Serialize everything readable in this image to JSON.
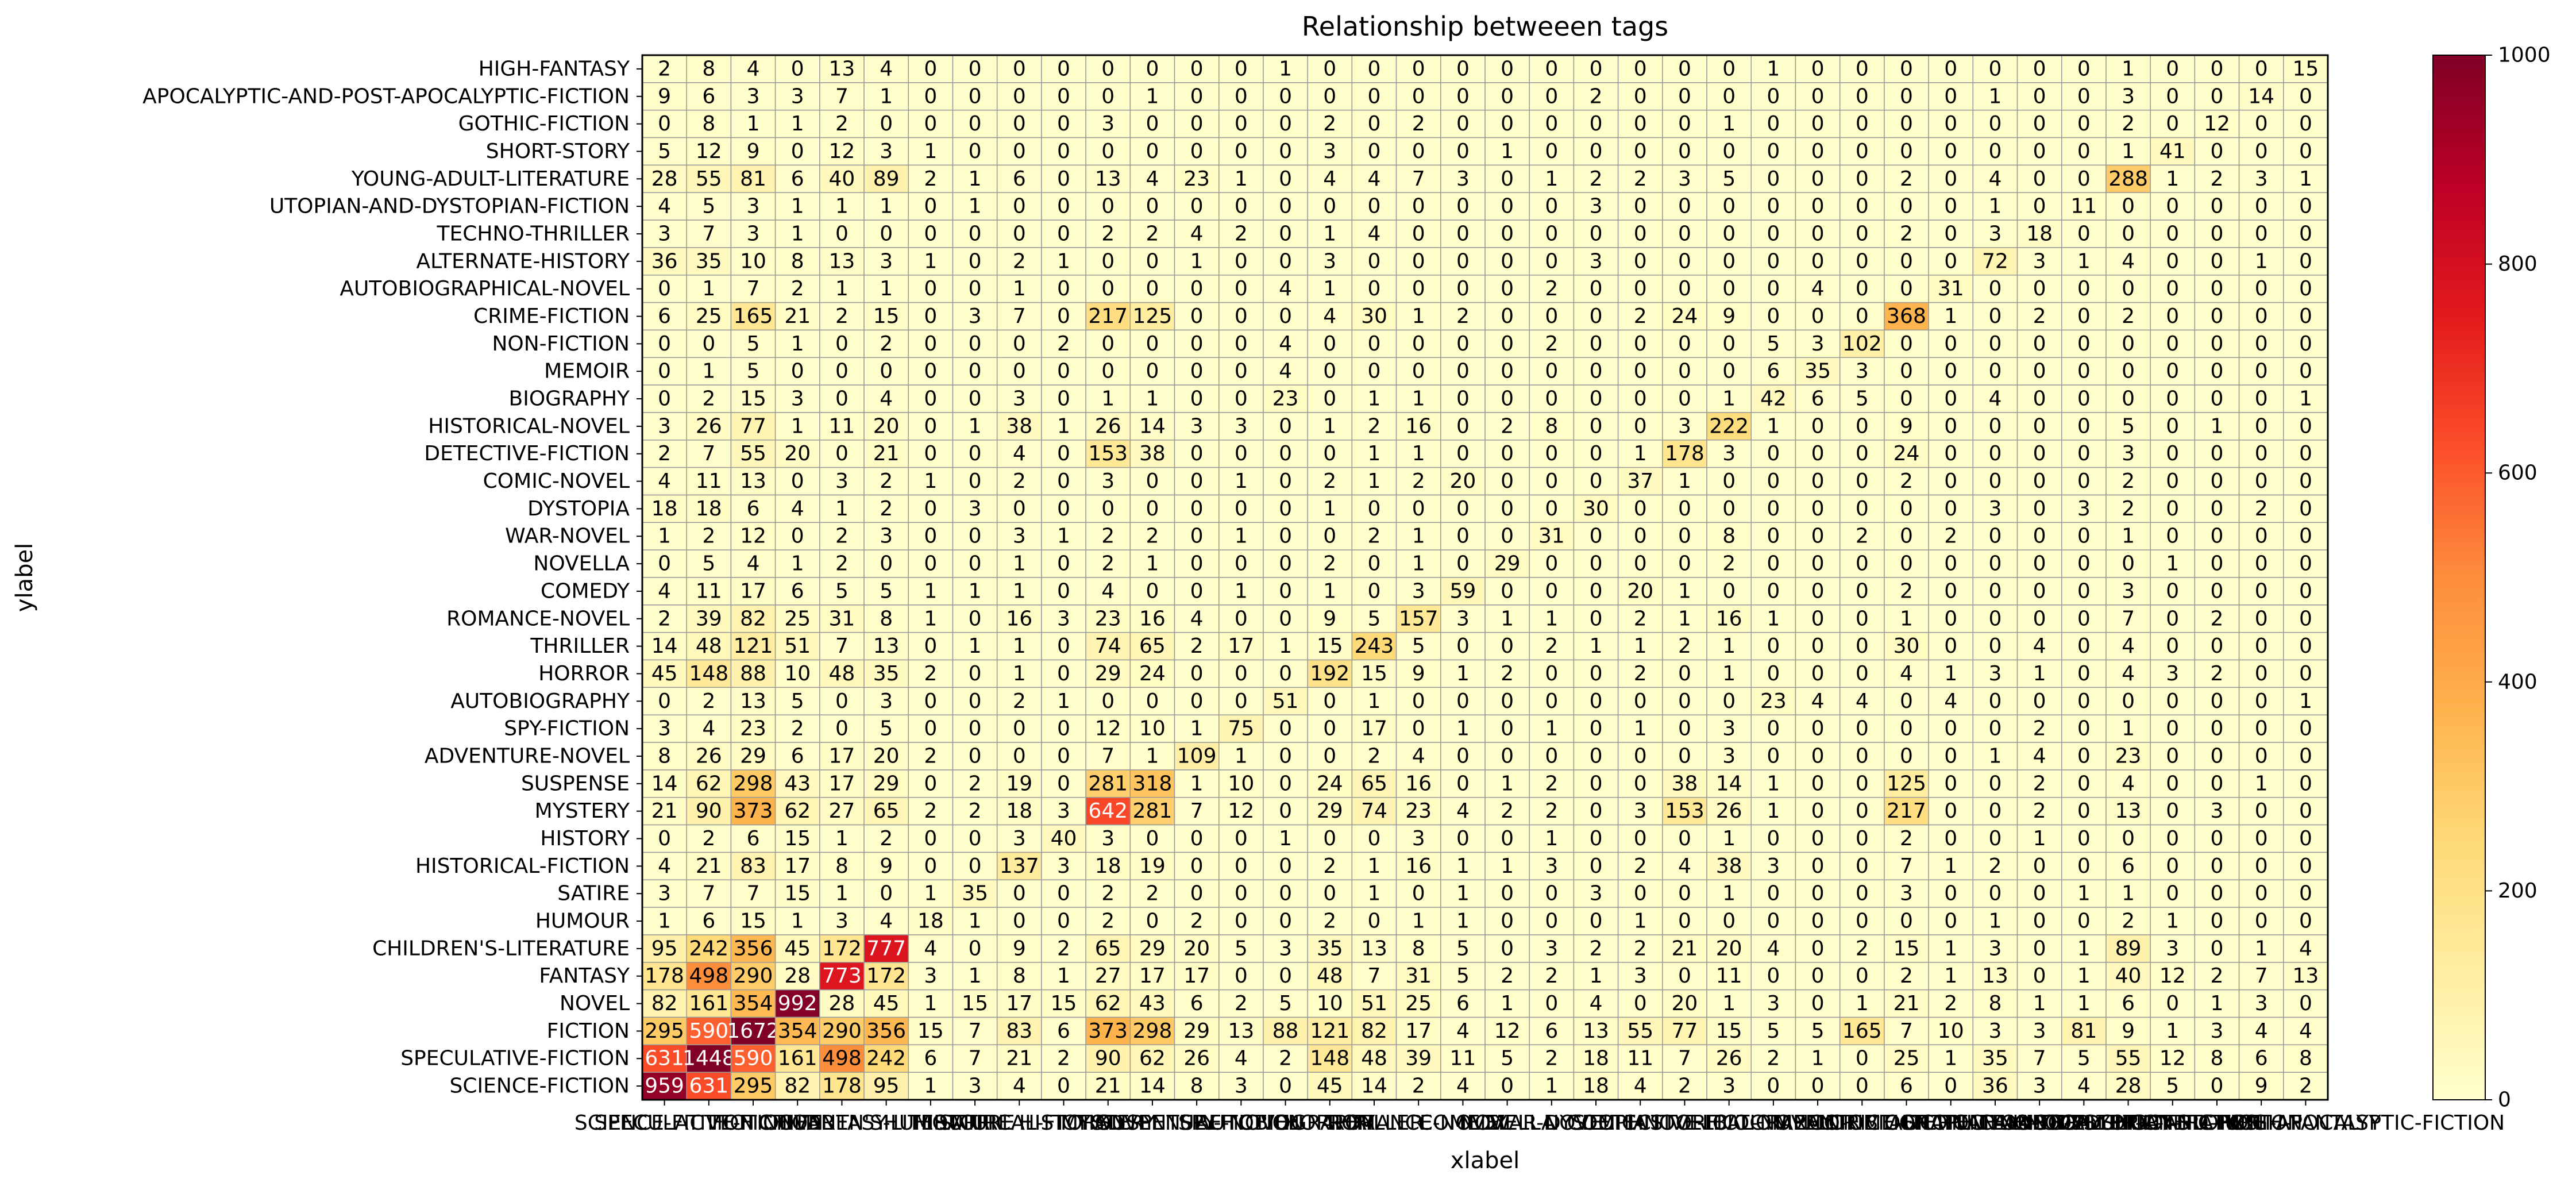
{
  "chart_data": {
    "type": "heatmap",
    "title": "Relationship betweeen tags",
    "xlabel": "xlabel",
    "ylabel": "ylabel",
    "colormap": "YlOrRd",
    "vmin": 0,
    "vmax": 1000,
    "colorbar_ticks": [
      0,
      200,
      400,
      600,
      800,
      1000
    ],
    "rows": [
      "HIGH-FANTASY",
      "APOCALYPTIC-AND-POST-APOCALYPTIC-FICTION",
      "GOTHIC-FICTION",
      "SHORT-STORY",
      "YOUNG-ADULT-LITERATURE",
      "UTOPIAN-AND-DYSTOPIAN-FICTION",
      "TECHNO-THRILLER",
      "ALTERNATE-HISTORY",
      "AUTOBIOGRAPHICAL-NOVEL",
      "CRIME-FICTION",
      "NON-FICTION",
      "MEMOIR",
      "BIOGRAPHY",
      "HISTORICAL-NOVEL",
      "DETECTIVE-FICTION",
      "COMIC-NOVEL",
      "DYSTOPIA",
      "WAR-NOVEL",
      "NOVELLA",
      "COMEDY",
      "ROMANCE-NOVEL",
      "THRILLER",
      "HORROR",
      "AUTOBIOGRAPHY",
      "SPY-FICTION",
      "ADVENTURE-NOVEL",
      "SUSPENSE",
      "MYSTERY",
      "HISTORY",
      "HISTORICAL-FICTION",
      "SATIRE",
      "HUMOUR",
      "CHILDREN'S-LITERATURE",
      "FANTASY",
      "NOVEL",
      "FICTION",
      "SPECULATIVE-FICTION",
      "SCIENCE-FICTION"
    ],
    "columns": [
      "SCIENCE-FICTION",
      "SPECULATIVE-FICTION",
      "FICTION",
      "NOVEL",
      "FANTASY",
      "CHILDREN'S-LITERATURE",
      "HUMOUR",
      "SATIRE",
      "HISTORICAL-FICTION",
      "HISTORY",
      "MYSTERY",
      "SUSPENSE",
      "ADVENTURE-NOVEL",
      "SPY-FICTION",
      "AUTOBIOGRAPHY",
      "HORROR",
      "THRILLER",
      "ROMANCE-NOVEL",
      "COMEDY",
      "NOVELLA",
      "WAR-NOVEL",
      "DYSTOPIA",
      "COMIC-NOVEL",
      "DETECTIVE-FICTION",
      "HISTORICAL-NOVEL",
      "BIOGRAPHY",
      "MEMOIR",
      "NON-FICTION",
      "CRIME-FICTION",
      "AUTOBIOGRAPHICAL-NOVEL",
      "ALTERNATE-HISTORY",
      "TECHNO-THRILLER",
      "UTOPIAN-AND-DYSTOPIAN-FICTION",
      "YOUNG-ADULT-LITERATURE",
      "SHORT-STORY",
      "GOTHIC-FICTION",
      "APOCALYPTIC-AND-POST-APOCALYPTIC-FICTION",
      "HIGH-FANTASY"
    ],
    "values": [
      [
        2,
        8,
        4,
        0,
        13,
        4,
        0,
        0,
        0,
        0,
        0,
        0,
        0,
        0,
        1,
        0,
        0,
        0,
        0,
        0,
        0,
        0,
        0,
        0,
        0,
        1,
        0,
        0,
        0,
        0,
        0,
        0,
        0,
        1,
        0,
        0,
        0,
        15
      ],
      [
        9,
        6,
        3,
        3,
        7,
        1,
        0,
        0,
        0,
        0,
        0,
        1,
        0,
        0,
        0,
        0,
        0,
        0,
        0,
        0,
        0,
        2,
        0,
        0,
        0,
        0,
        0,
        0,
        0,
        0,
        1,
        0,
        0,
        3,
        0,
        0,
        14,
        0
      ],
      [
        0,
        8,
        1,
        1,
        2,
        0,
        0,
        0,
        0,
        0,
        3,
        0,
        0,
        0,
        0,
        2,
        0,
        2,
        0,
        0,
        0,
        0,
        0,
        0,
        1,
        0,
        0,
        0,
        0,
        0,
        0,
        0,
        0,
        2,
        0,
        12,
        0,
        0
      ],
      [
        5,
        12,
        9,
        0,
        12,
        3,
        1,
        0,
        0,
        0,
        0,
        0,
        0,
        0,
        0,
        3,
        0,
        0,
        0,
        1,
        0,
        0,
        0,
        0,
        0,
        0,
        0,
        0,
        0,
        0,
        0,
        0,
        0,
        1,
        41,
        0,
        0,
        0
      ],
      [
        28,
        55,
        81,
        6,
        40,
        89,
        2,
        1,
        6,
        0,
        13,
        4,
        23,
        1,
        0,
        4,
        4,
        7,
        3,
        0,
        1,
        2,
        2,
        3,
        5,
        0,
        0,
        0,
        2,
        0,
        4,
        0,
        0,
        288,
        1,
        2,
        3,
        1
      ],
      [
        4,
        5,
        3,
        1,
        1,
        1,
        0,
        1,
        0,
        0,
        0,
        0,
        0,
        0,
        0,
        0,
        0,
        0,
        0,
        0,
        0,
        3,
        0,
        0,
        0,
        0,
        0,
        0,
        0,
        0,
        1,
        0,
        11,
        0,
        0,
        0,
        0,
        0
      ],
      [
        3,
        7,
        3,
        1,
        0,
        0,
        0,
        0,
        0,
        0,
        2,
        2,
        4,
        2,
        0,
        1,
        4,
        0,
        0,
        0,
        0,
        0,
        0,
        0,
        0,
        0,
        0,
        0,
        2,
        0,
        3,
        18,
        0,
        0,
        0,
        0,
        0,
        0
      ],
      [
        36,
        35,
        10,
        8,
        13,
        3,
        1,
        0,
        2,
        1,
        0,
        0,
        1,
        0,
        0,
        3,
        0,
        0,
        0,
        0,
        0,
        3,
        0,
        0,
        0,
        0,
        0,
        0,
        0,
        0,
        72,
        3,
        1,
        4,
        0,
        0,
        1,
        0
      ],
      [
        0,
        1,
        7,
        2,
        1,
        1,
        0,
        0,
        1,
        0,
        0,
        0,
        0,
        0,
        4,
        1,
        0,
        0,
        0,
        0,
        2,
        0,
        0,
        0,
        0,
        0,
        4,
        0,
        0,
        31,
        0,
        0,
        0,
        0,
        0,
        0,
        0,
        0
      ],
      [
        6,
        25,
        165,
        21,
        2,
        15,
        0,
        3,
        7,
        0,
        217,
        125,
        0,
        0,
        0,
        4,
        30,
        1,
        2,
        0,
        0,
        0,
        2,
        24,
        9,
        0,
        0,
        0,
        368,
        1,
        0,
        2,
        0,
        2,
        0,
        0,
        0,
        0
      ],
      [
        0,
        0,
        5,
        1,
        0,
        2,
        0,
        0,
        0,
        2,
        0,
        0,
        0,
        0,
        4,
        0,
        0,
        0,
        0,
        0,
        2,
        0,
        0,
        0,
        0,
        5,
        3,
        102,
        0,
        0,
        0,
        0,
        0,
        0,
        0,
        0,
        0,
        0
      ],
      [
        0,
        1,
        5,
        0,
        0,
        0,
        0,
        0,
        0,
        0,
        0,
        0,
        0,
        0,
        4,
        0,
        0,
        0,
        0,
        0,
        0,
        0,
        0,
        0,
        0,
        6,
        35,
        3,
        0,
        0,
        0,
        0,
        0,
        0,
        0,
        0,
        0,
        0
      ],
      [
        0,
        2,
        15,
        3,
        0,
        4,
        0,
        0,
        3,
        0,
        1,
        1,
        0,
        0,
        23,
        0,
        1,
        1,
        0,
        0,
        0,
        0,
        0,
        0,
        1,
        42,
        6,
        5,
        0,
        0,
        4,
        0,
        0,
        0,
        0,
        0,
        0,
        1
      ],
      [
        3,
        26,
        77,
        1,
        11,
        20,
        0,
        1,
        38,
        1,
        26,
        14,
        3,
        3,
        0,
        1,
        2,
        16,
        0,
        2,
        8,
        0,
        0,
        3,
        222,
        1,
        0,
        0,
        9,
        0,
        0,
        0,
        0,
        5,
        0,
        1,
        0,
        0
      ],
      [
        2,
        7,
        55,
        20,
        0,
        21,
        0,
        0,
        4,
        0,
        153,
        38,
        0,
        0,
        0,
        0,
        1,
        1,
        0,
        0,
        0,
        0,
        1,
        178,
        3,
        0,
        0,
        0,
        24,
        0,
        0,
        0,
        0,
        3,
        0,
        0,
        0,
        0
      ],
      [
        4,
        11,
        13,
        0,
        3,
        2,
        1,
        0,
        2,
        0,
        3,
        0,
        0,
        1,
        0,
        2,
        1,
        2,
        20,
        0,
        0,
        0,
        37,
        1,
        0,
        0,
        0,
        0,
        2,
        0,
        0,
        0,
        0,
        2,
        0,
        0,
        0,
        0
      ],
      [
        18,
        18,
        6,
        4,
        1,
        2,
        0,
        3,
        0,
        0,
        0,
        0,
        0,
        0,
        0,
        1,
        0,
        0,
        0,
        0,
        0,
        30,
        0,
        0,
        0,
        0,
        0,
        0,
        0,
        0,
        3,
        0,
        3,
        2,
        0,
        0,
        2,
        0
      ],
      [
        1,
        2,
        12,
        0,
        2,
        3,
        0,
        0,
        3,
        1,
        2,
        2,
        0,
        1,
        0,
        0,
        2,
        1,
        0,
        0,
        31,
        0,
        0,
        0,
        8,
        0,
        0,
        2,
        0,
        2,
        0,
        0,
        0,
        1,
        0,
        0,
        0,
        0
      ],
      [
        0,
        5,
        4,
        1,
        2,
        0,
        0,
        0,
        1,
        0,
        2,
        1,
        0,
        0,
        0,
        2,
        0,
        1,
        0,
        29,
        0,
        0,
        0,
        0,
        2,
        0,
        0,
        0,
        0,
        0,
        0,
        0,
        0,
        0,
        1,
        0,
        0,
        0
      ],
      [
        4,
        11,
        17,
        6,
        5,
        5,
        1,
        1,
        1,
        0,
        4,
        0,
        0,
        1,
        0,
        1,
        0,
        3,
        59,
        0,
        0,
        0,
        20,
        1,
        0,
        0,
        0,
        0,
        2,
        0,
        0,
        0,
        0,
        3,
        0,
        0,
        0,
        0
      ],
      [
        2,
        39,
        82,
        25,
        31,
        8,
        1,
        0,
        16,
        3,
        23,
        16,
        4,
        0,
        0,
        9,
        5,
        157,
        3,
        1,
        1,
        0,
        2,
        1,
        16,
        1,
        0,
        0,
        1,
        0,
        0,
        0,
        0,
        7,
        0,
        2,
        0,
        0
      ],
      [
        14,
        48,
        121,
        51,
        7,
        13,
        0,
        1,
        1,
        0,
        74,
        65,
        2,
        17,
        1,
        15,
        243,
        5,
        0,
        0,
        2,
        1,
        1,
        2,
        1,
        0,
        0,
        0,
        30,
        0,
        0,
        4,
        0,
        4,
        0,
        0,
        0,
        0
      ],
      [
        45,
        148,
        88,
        10,
        48,
        35,
        2,
        0,
        1,
        0,
        29,
        24,
        0,
        0,
        0,
        192,
        15,
        9,
        1,
        2,
        0,
        0,
        2,
        0,
        1,
        0,
        0,
        0,
        4,
        1,
        3,
        1,
        0,
        4,
        3,
        2,
        0,
        0
      ],
      [
        0,
        2,
        13,
        5,
        0,
        3,
        0,
        0,
        2,
        1,
        0,
        0,
        0,
        0,
        51,
        0,
        1,
        0,
        0,
        0,
        0,
        0,
        0,
        0,
        0,
        23,
        4,
        4,
        0,
        4,
        0,
        0,
        0,
        0,
        0,
        0,
        0,
        1
      ],
      [
        3,
        4,
        23,
        2,
        0,
        5,
        0,
        0,
        0,
        0,
        12,
        10,
        1,
        75,
        0,
        0,
        17,
        0,
        1,
        0,
        1,
        0,
        1,
        0,
        3,
        0,
        0,
        0,
        0,
        0,
        0,
        2,
        0,
        1,
        0,
        0,
        0,
        0
      ],
      [
        8,
        26,
        29,
        6,
        17,
        20,
        2,
        0,
        0,
        0,
        7,
        1,
        109,
        1,
        0,
        0,
        2,
        4,
        0,
        0,
        0,
        0,
        0,
        0,
        3,
        0,
        0,
        0,
        0,
        0,
        1,
        4,
        0,
        23,
        0,
        0,
        0,
        0
      ],
      [
        14,
        62,
        298,
        43,
        17,
        29,
        0,
        2,
        19,
        0,
        281,
        318,
        1,
        10,
        0,
        24,
        65,
        16,
        0,
        1,
        2,
        0,
        0,
        38,
        14,
        1,
        0,
        0,
        125,
        0,
        0,
        2,
        0,
        4,
        0,
        0,
        1,
        0
      ],
      [
        21,
        90,
        373,
        62,
        27,
        65,
        2,
        2,
        18,
        3,
        642,
        281,
        7,
        12,
        0,
        29,
        74,
        23,
        4,
        2,
        2,
        0,
        3,
        153,
        26,
        1,
        0,
        0,
        217,
        0,
        0,
        2,
        0,
        13,
        0,
        3,
        0,
        0
      ],
      [
        0,
        2,
        6,
        15,
        1,
        2,
        0,
        0,
        3,
        40,
        3,
        0,
        0,
        0,
        1,
        0,
        0,
        3,
        0,
        0,
        1,
        0,
        0,
        0,
        1,
        0,
        0,
        0,
        2,
        0,
        0,
        1,
        0,
        0,
        0,
        0,
        0,
        0
      ],
      [
        4,
        21,
        83,
        17,
        8,
        9,
        0,
        0,
        137,
        3,
        18,
        19,
        0,
        0,
        0,
        2,
        1,
        16,
        1,
        1,
        3,
        0,
        2,
        4,
        38,
        3,
        0,
        0,
        7,
        1,
        2,
        0,
        0,
        6,
        0,
        0,
        0,
        0
      ],
      [
        3,
        7,
        7,
        15,
        1,
        0,
        1,
        35,
        0,
        0,
        2,
        2,
        0,
        0,
        0,
        0,
        1,
        0,
        1,
        0,
        0,
        3,
        0,
        0,
        1,
        0,
        0,
        0,
        3,
        0,
        0,
        0,
        1,
        1,
        0,
        0,
        0,
        0
      ],
      [
        1,
        6,
        15,
        1,
        3,
        4,
        18,
        1,
        0,
        0,
        2,
        0,
        2,
        0,
        0,
        2,
        0,
        1,
        1,
        0,
        0,
        0,
        1,
        0,
        0,
        0,
        0,
        0,
        0,
        0,
        1,
        0,
        0,
        2,
        1,
        0,
        0,
        0
      ],
      [
        95,
        242,
        356,
        45,
        172,
        777,
        4,
        0,
        9,
        2,
        65,
        29,
        20,
        5,
        3,
        35,
        13,
        8,
        5,
        0,
        3,
        2,
        2,
        21,
        20,
        4,
        0,
        2,
        15,
        1,
        3,
        0,
        1,
        89,
        3,
        0,
        1,
        4
      ],
      [
        178,
        498,
        290,
        28,
        773,
        172,
        3,
        1,
        8,
        1,
        27,
        17,
        17,
        0,
        0,
        48,
        7,
        31,
        5,
        2,
        2,
        1,
        3,
        0,
        11,
        0,
        0,
        0,
        2,
        1,
        13,
        0,
        1,
        40,
        12,
        2,
        7,
        13
      ],
      [
        82,
        161,
        354,
        992,
        28,
        45,
        1,
        15,
        17,
        15,
        62,
        43,
        6,
        2,
        5,
        10,
        51,
        25,
        6,
        1,
        0,
        4,
        0,
        20,
        1,
        3,
        0,
        1,
        21,
        2,
        8,
        1,
        1,
        6,
        0,
        1,
        3,
        0
      ],
      [
        295,
        590,
        1672,
        354,
        290,
        356,
        15,
        7,
        83,
        6,
        373,
        298,
        29,
        13,
        88,
        121,
        82,
        17,
        4,
        12,
        6,
        13,
        55,
        77,
        15,
        5,
        5,
        165,
        7,
        10,
        3,
        3,
        81,
        9,
        1,
        3,
        4,
        4
      ],
      [
        631,
        1448,
        590,
        161,
        498,
        242,
        6,
        7,
        21,
        2,
        90,
        62,
        26,
        4,
        2,
        148,
        48,
        39,
        11,
        5,
        2,
        18,
        11,
        7,
        26,
        2,
        1,
        0,
        25,
        1,
        35,
        7,
        5,
        55,
        12,
        8,
        6,
        8
      ],
      [
        959,
        631,
        295,
        82,
        178,
        95,
        1,
        3,
        4,
        0,
        21,
        14,
        8,
        3,
        0,
        45,
        14,
        2,
        4,
        0,
        1,
        18,
        4,
        2,
        3,
        0,
        0,
        0,
        6,
        0,
        36,
        3,
        4,
        28,
        5,
        0,
        9,
        2
      ]
    ]
  }
}
